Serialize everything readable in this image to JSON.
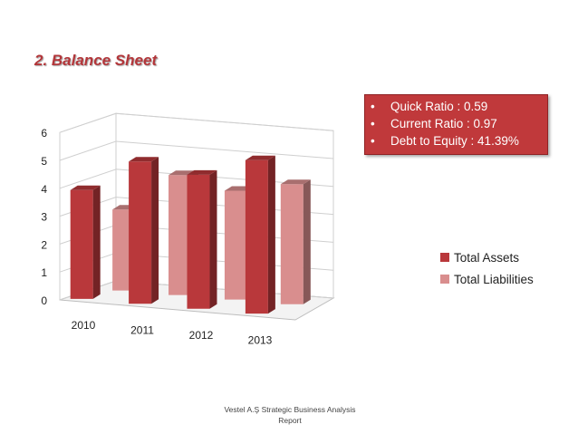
{
  "slide": {
    "title": "2. Balance Sheet",
    "footer_line1": "Vestel A.Ş Strategic Business Analysis",
    "footer_line2": "Report"
  },
  "ratios": [
    {
      "text": "Quick Ratio : 0.59"
    },
    {
      "text": "Current Ratio : 0.97"
    },
    {
      "text": "Debt to Equity : 41.39%"
    }
  ],
  "colors": {
    "title": "#b3363a",
    "box_bg": "#c0393b",
    "assets": "#b9383b",
    "liabilities": "#d98e8e"
  },
  "chart_data": {
    "type": "bar",
    "style": "3d-clustered-column",
    "categories": [
      "2010",
      "2011",
      "2012",
      "2013"
    ],
    "series": [
      {
        "name": "Total Assets",
        "values": [
          3.9,
          5.1,
          4.8,
          5.5
        ],
        "color": "#b9383b"
      },
      {
        "name": "Total Liabilities",
        "values": [
          2.9,
          4.3,
          3.9,
          4.3
        ],
        "color": "#d98e8e"
      }
    ],
    "ylim": [
      0,
      6
    ],
    "yticks": [
      "0",
      "1",
      "2",
      "3",
      "4",
      "5",
      "6"
    ],
    "grid": true,
    "legend": "right"
  }
}
